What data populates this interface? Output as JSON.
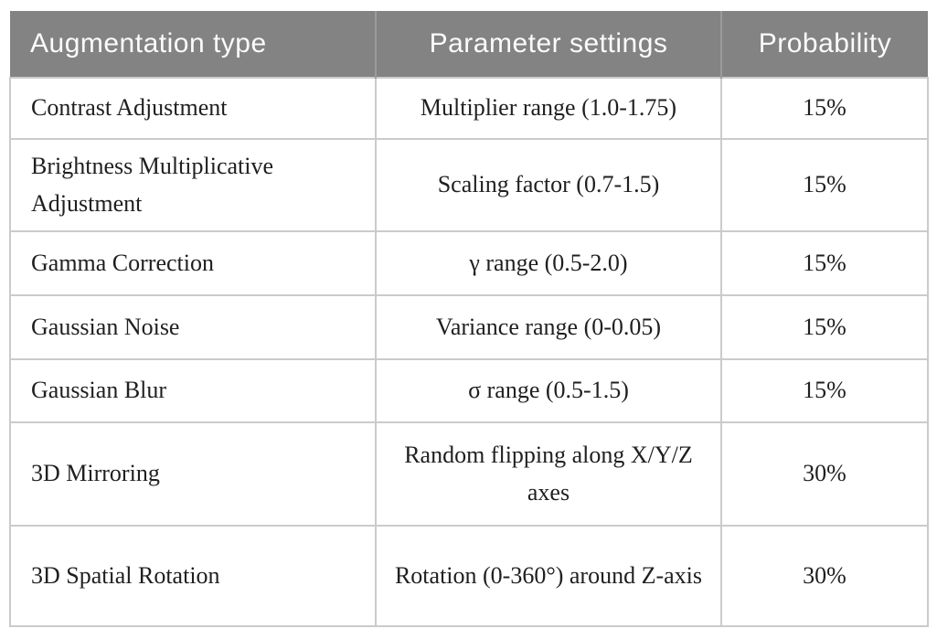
{
  "table": {
    "headers": [
      {
        "label": "Augmentation type"
      },
      {
        "label": "Parameter settings"
      },
      {
        "label": "Probability"
      }
    ],
    "rows": [
      [
        "Contrast Adjustment",
        "Multiplier range (1.0-1.75)",
        "15%"
      ],
      [
        "Brightness Multiplicative Adjustment",
        "Scaling factor (0.7-1.5)",
        "15%"
      ],
      [
        "Gamma Correction",
        "γ range (0.5-2.0)",
        "15%"
      ],
      [
        "Gaussian Noise",
        "Variance range (0-0.05)",
        "15%"
      ],
      [
        "Gaussian Blur",
        "σ range (0.5-1.5)",
        "15%"
      ],
      [
        "3D Mirroring",
        "Random flipping along X/Y/Z axes",
        "30%"
      ],
      [
        "3D Spatial Rotation",
        "Rotation (0-360°) around Z-axis",
        "30%"
      ]
    ],
    "colors": {
      "header_bg": "#838383",
      "header_text": "#fbfbfb",
      "body_text": "#1f1f1f",
      "border": "#cbcbcb"
    }
  }
}
